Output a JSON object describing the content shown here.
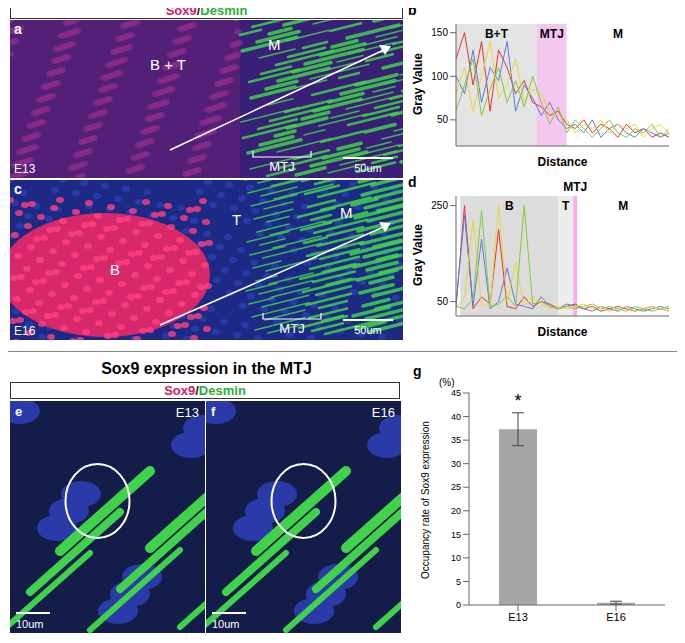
{
  "header": {
    "parts": [
      "Sox9",
      "/",
      "Desmin"
    ],
    "colors": [
      "#d0206a",
      "#222222",
      "#2fae3a"
    ]
  },
  "section_title": "Sox9 expression in the MTJ",
  "images": [
    {
      "letter": "a",
      "stage": "E13",
      "scale_bar": "50um",
      "regions": [
        "B + T",
        "M"
      ],
      "bracket": "MTJ"
    },
    {
      "letter": "c",
      "stage": "E16",
      "scale_bar": "50um",
      "regions": [
        "B",
        "T",
        "M"
      ],
      "bracket": "MTJ"
    },
    {
      "letter": "e",
      "stage": "E13",
      "scale_bar": "10um"
    },
    {
      "letter": "f",
      "stage": "E16",
      "scale_bar": "10um"
    }
  ],
  "chart_data": [
    {
      "letter": "b",
      "type": "line",
      "x_label": "Distance",
      "y_label": "Gray Value",
      "x": [
        0,
        4,
        8,
        12,
        16,
        20,
        24,
        28,
        32,
        36,
        40,
        44,
        48,
        52,
        56,
        60,
        64,
        68,
        72,
        76,
        80,
        84,
        88,
        92,
        96,
        100
      ],
      "xlim": [
        0,
        100
      ],
      "ylim": [
        20,
        160
      ],
      "yticks": [
        50,
        100,
        150
      ],
      "tick_labels": "y",
      "grid": false,
      "regions": [
        {
          "label": "B+T",
          "from": 0,
          "to": 38,
          "color": "#e4e4e4"
        },
        {
          "label": "MTJ",
          "from": 38,
          "to": 52,
          "color": "#f5c6ef"
        },
        {
          "label": "M",
          "from": 52,
          "to": 100,
          "color": "#ffffff"
        }
      ],
      "series": [
        {
          "color": "#e8312f",
          "values": [
            120,
            150,
            90,
            140,
            60,
            130,
            110,
            80,
            95,
            70,
            65,
            55,
            60,
            45,
            40,
            50,
            35,
            45,
            40,
            30,
            45,
            35,
            40,
            30,
            35,
            30
          ]
        },
        {
          "color": "#5b7be0",
          "values": [
            100,
            80,
            130,
            70,
            110,
            95,
            140,
            60,
            90,
            75,
            55,
            70,
            50,
            40,
            45,
            35,
            50,
            30,
            40,
            45,
            35,
            30,
            40,
            35,
            30,
            35
          ]
        },
        {
          "color": "#e8d838",
          "values": [
            80,
            110,
            60,
            100,
            140,
            75,
            90,
            120,
            70,
            85,
            80,
            60,
            55,
            50,
            35,
            45,
            40,
            50,
            35,
            45,
            40,
            45,
            30,
            40,
            45,
            35
          ]
        },
        {
          "color": "#86c93c",
          "values": [
            60,
            90,
            120,
            55,
            85,
            110,
            70,
            95,
            65,
            100,
            70,
            45,
            65,
            35,
            50,
            40,
            30,
            40,
            50,
            35,
            30,
            40,
            35,
            45,
            30,
            40
          ]
        }
      ]
    },
    {
      "letter": "d",
      "type": "line",
      "x_label": "Distance",
      "y_label": "Gray Value",
      "x": [
        0,
        4,
        8,
        12,
        16,
        20,
        24,
        28,
        32,
        36,
        40,
        44,
        48,
        52,
        56,
        60,
        64,
        68,
        72,
        76,
        80,
        84,
        88,
        92,
        96,
        100
      ],
      "xlim": [
        0,
        100
      ],
      "ylim": [
        20,
        270
      ],
      "yticks": [
        50,
        250
      ],
      "tick_labels": "y",
      "grid": false,
      "regions": [
        {
          "label": "B",
          "from": 2,
          "to": 48,
          "color": "#dcdcdc"
        },
        {
          "label": "T",
          "from": 48,
          "to": 55,
          "color": "#ececec"
        },
        {
          "label": "MTJ",
          "from": 55,
          "to": 57,
          "color": "#f5b0ec"
        },
        {
          "label": "M",
          "from": 57,
          "to": 100,
          "color": "#ffffff"
        }
      ],
      "series": [
        {
          "color": "#e8312f",
          "values": [
            40,
            250,
            35,
            60,
            45,
            200,
            40,
            35,
            60,
            40,
            50,
            45,
            35,
            40,
            45,
            35,
            40,
            30,
            35,
            40,
            35,
            30,
            35,
            40,
            35,
            30
          ]
        },
        {
          "color": "#5b7be0",
          "values": [
            45,
            230,
            40,
            180,
            35,
            50,
            120,
            45,
            40,
            35,
            60,
            40,
            35,
            45,
            40,
            35,
            30,
            40,
            35,
            30,
            40,
            35,
            30,
            35,
            40,
            35
          ]
        },
        {
          "color": "#e8d838",
          "values": [
            35,
            60,
            220,
            45,
            40,
            250,
            50,
            130,
            40,
            60,
            45,
            35,
            40,
            35,
            40,
            45,
            35,
            40,
            30,
            35,
            40,
            30,
            35,
            40,
            35,
            30
          ]
        },
        {
          "color": "#86c93c",
          "values": [
            40,
            35,
            55,
            240,
            40,
            45,
            60,
            40,
            250,
            45,
            50,
            40,
            35,
            40,
            35,
            40,
            45,
            35,
            40,
            35,
            30,
            40,
            35,
            30,
            35,
            40
          ]
        }
      ]
    },
    {
      "letter": "g",
      "type": "bar",
      "categories": [
        "E13",
        "E16"
      ],
      "values": [
        37.3,
        0.5
      ],
      "errors": [
        3.5,
        0.3
      ],
      "color": "#a6a6a6",
      "y_label": "Occupancy rate of Sox9 expression",
      "y_unit": "(%)",
      "ylim": [
        0,
        45
      ],
      "yticks": [
        0,
        5,
        10,
        15,
        20,
        25,
        30,
        35,
        40,
        45
      ],
      "grid": false,
      "annotations": [
        {
          "category": "E13",
          "text": "*"
        }
      ]
    }
  ]
}
